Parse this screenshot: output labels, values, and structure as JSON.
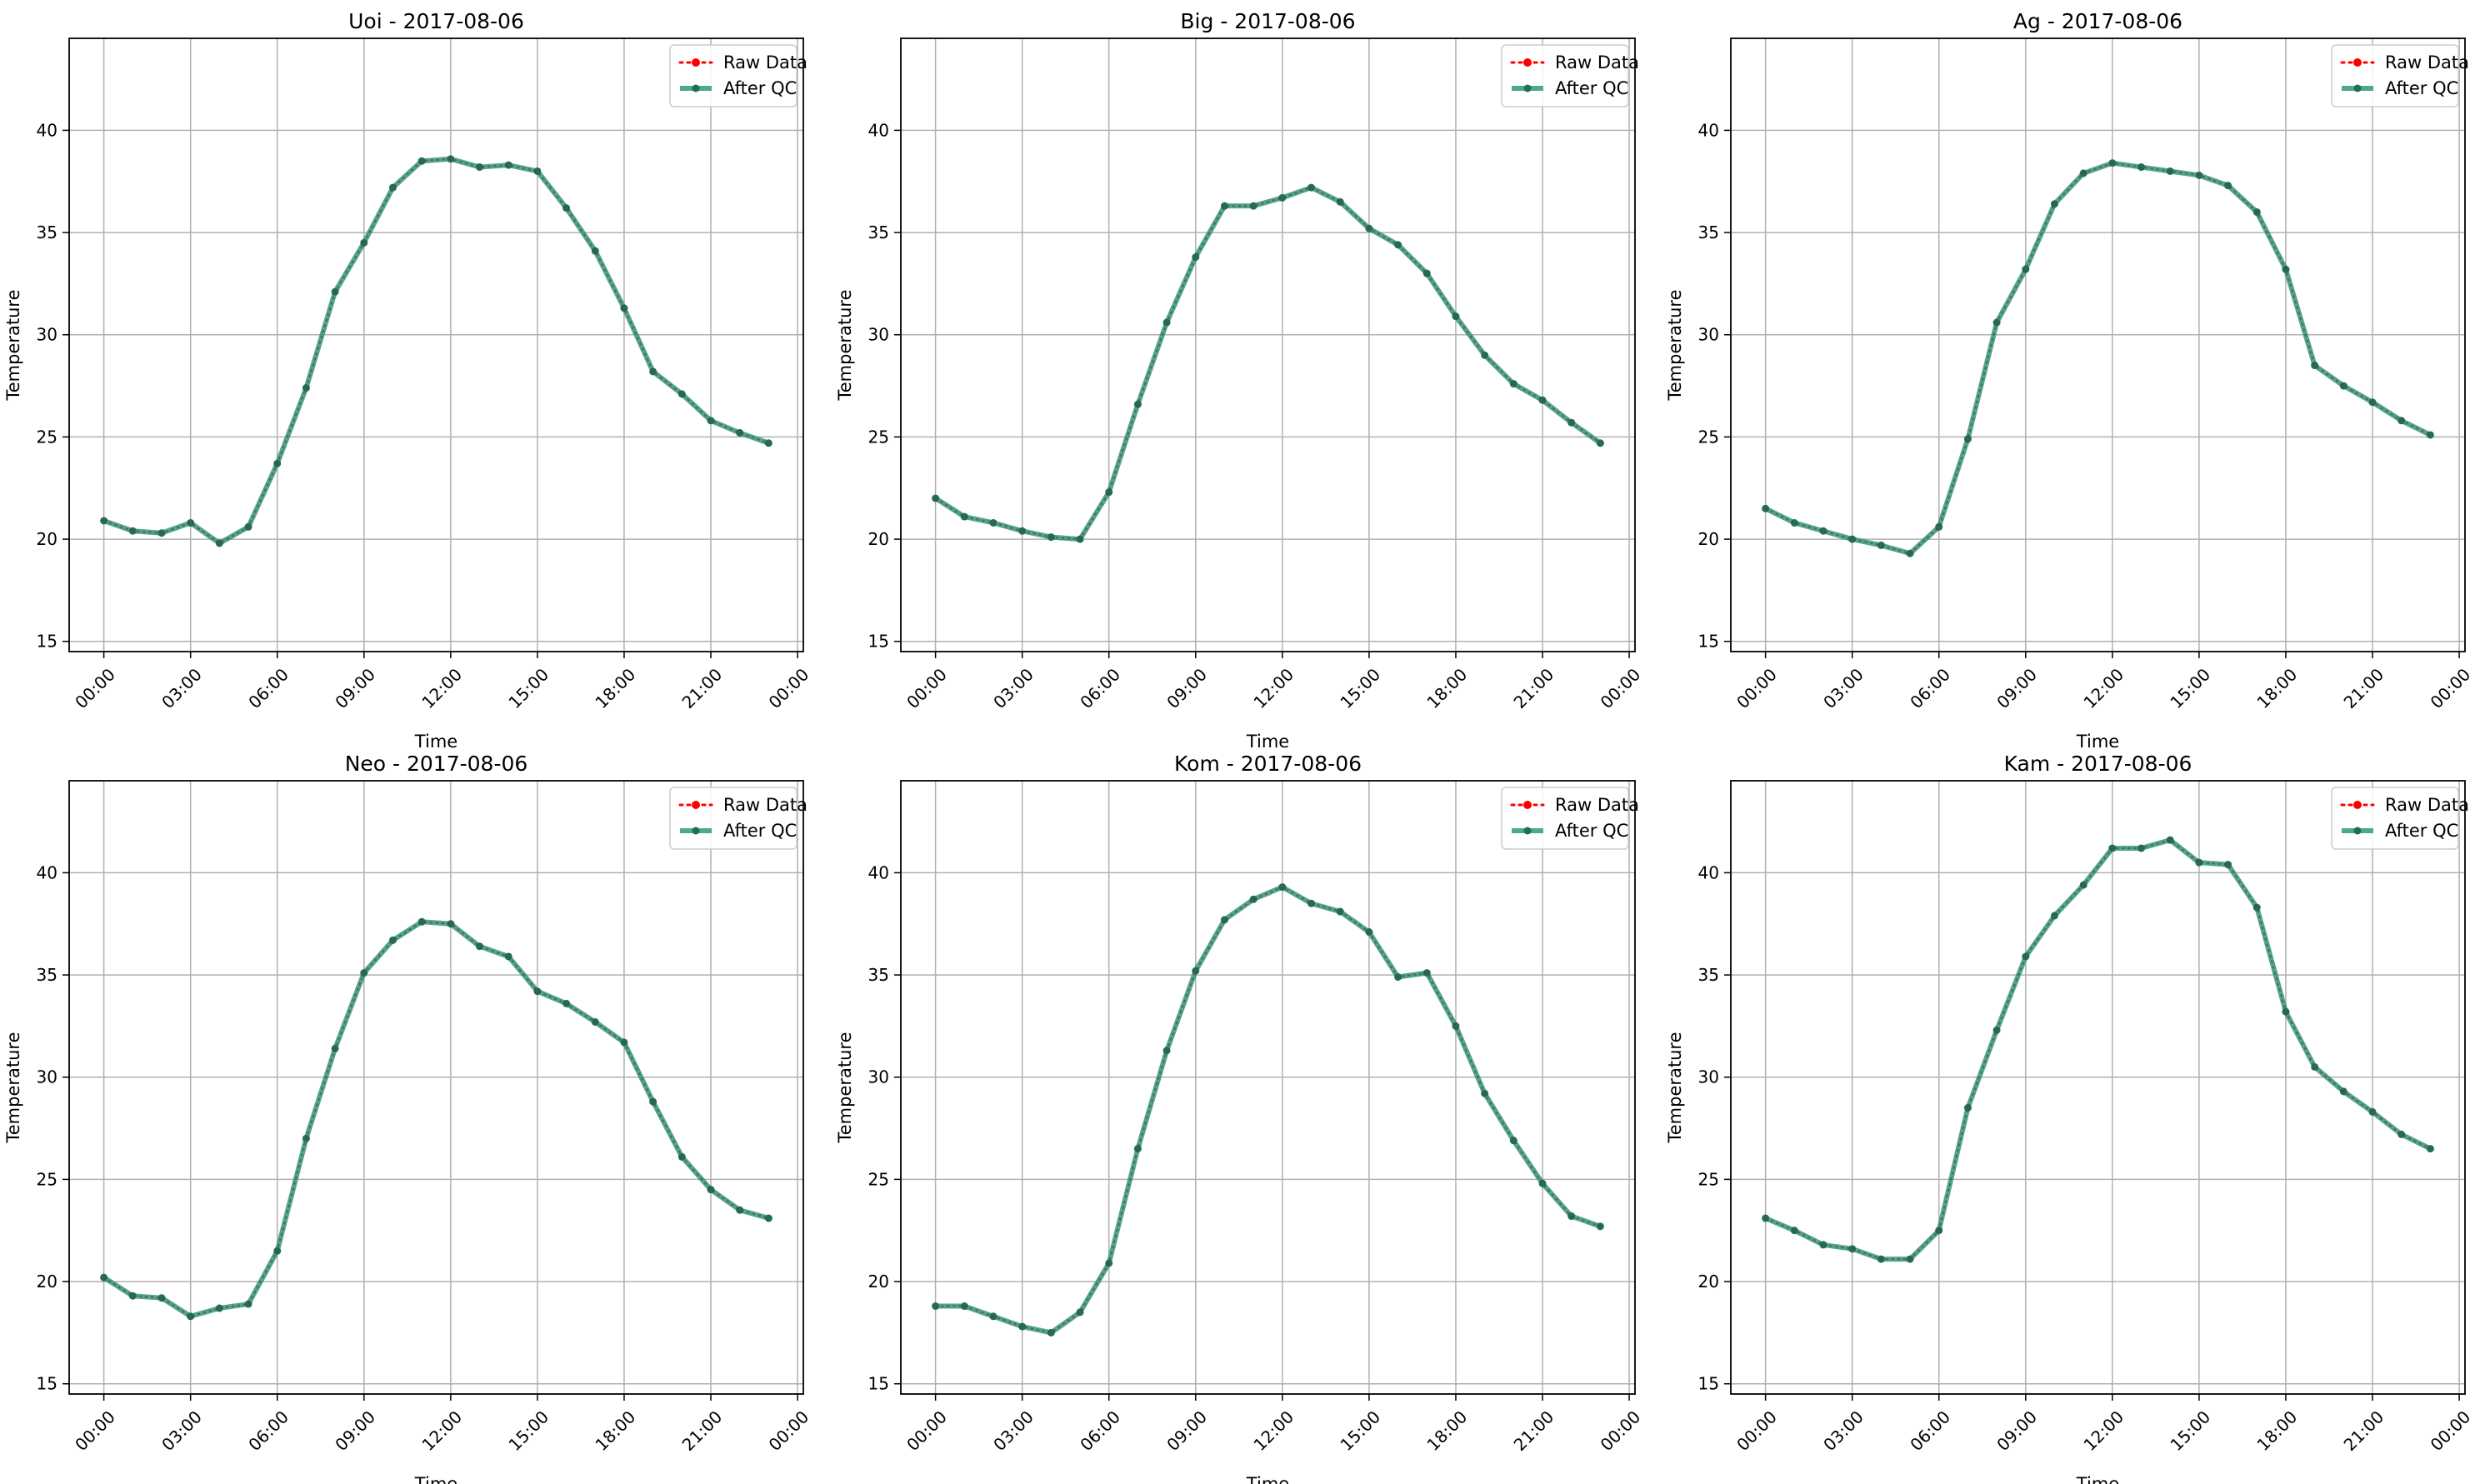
{
  "figure": {
    "background": "#ffffff"
  },
  "colors": {
    "raw": "#ff0000",
    "qc": "#2e9a78",
    "qc_marker": "#1f6e58",
    "grid": "#b0b0b0",
    "axis": "#000000"
  },
  "legend": {
    "raw_label": "Raw Data",
    "qc_label": "After QC",
    "placement": "top-right"
  },
  "chart_data": [
    {
      "type": "line",
      "title": "Uoi - 2017-08-06",
      "xlabel": "Time",
      "ylabel": "Temperature",
      "x_unit": "hour",
      "x": [
        0,
        1,
        2,
        3,
        4,
        5,
        6,
        7,
        8,
        9,
        10,
        11,
        12,
        13,
        14,
        15,
        16,
        17,
        18,
        19,
        20,
        21,
        22,
        23
      ],
      "xticks": [
        0,
        3,
        6,
        9,
        12,
        15,
        18,
        21,
        24
      ],
      "xtick_labels": [
        "00:00",
        "03:00",
        "06:00",
        "09:00",
        "12:00",
        "15:00",
        "18:00",
        "21:00",
        "00:00"
      ],
      "xlim": [
        -1.2,
        24.2
      ],
      "ylim": [
        14.5,
        44.5
      ],
      "yticks": [
        15,
        20,
        25,
        30,
        35,
        40
      ],
      "grid": true,
      "series": [
        {
          "name": "Raw Data",
          "values": [
            20.9,
            20.4,
            20.3,
            20.8,
            19.8,
            20.6,
            23.7,
            27.4,
            32.1,
            34.5,
            37.2,
            38.5,
            38.6,
            38.2,
            38.3,
            38.0,
            36.2,
            34.1,
            31.3,
            28.2,
            27.1,
            25.8,
            25.2,
            24.7
          ]
        },
        {
          "name": "After QC",
          "values": [
            20.9,
            20.4,
            20.3,
            20.8,
            19.8,
            20.6,
            23.7,
            27.4,
            32.1,
            34.5,
            37.2,
            38.5,
            38.6,
            38.2,
            38.3,
            38.0,
            36.2,
            34.1,
            31.3,
            28.2,
            27.1,
            25.8,
            25.2,
            24.7
          ]
        }
      ]
    },
    {
      "type": "line",
      "title": "Big - 2017-08-06",
      "xlabel": "Time",
      "ylabel": "Temperature",
      "x_unit": "hour",
      "x": [
        0,
        1,
        2,
        3,
        4,
        5,
        6,
        7,
        8,
        9,
        10,
        11,
        12,
        13,
        14,
        15,
        16,
        17,
        18,
        19,
        20,
        21,
        22,
        23
      ],
      "xticks": [
        0,
        3,
        6,
        9,
        12,
        15,
        18,
        21,
        24
      ],
      "xtick_labels": [
        "00:00",
        "03:00",
        "06:00",
        "09:00",
        "12:00",
        "15:00",
        "18:00",
        "21:00",
        "00:00"
      ],
      "xlim": [
        -1.2,
        24.2
      ],
      "ylim": [
        14.5,
        44.5
      ],
      "yticks": [
        15,
        20,
        25,
        30,
        35,
        40
      ],
      "grid": true,
      "series": [
        {
          "name": "Raw Data",
          "values": [
            22.0,
            21.1,
            20.8,
            20.4,
            20.1,
            20.0,
            22.3,
            26.6,
            30.6,
            33.8,
            36.3,
            36.3,
            36.7,
            37.2,
            36.5,
            35.2,
            34.4,
            33.0,
            30.9,
            29.0,
            27.6,
            26.8,
            25.7,
            24.7
          ]
        },
        {
          "name": "After QC",
          "values": [
            22.0,
            21.1,
            20.8,
            20.4,
            20.1,
            20.0,
            22.3,
            26.6,
            30.6,
            33.8,
            36.3,
            36.3,
            36.7,
            37.2,
            36.5,
            35.2,
            34.4,
            33.0,
            30.9,
            29.0,
            27.6,
            26.8,
            25.7,
            24.7
          ]
        }
      ]
    },
    {
      "type": "line",
      "title": "Ag - 2017-08-06",
      "xlabel": "Time",
      "ylabel": "Temperature",
      "x_unit": "hour",
      "x": [
        0,
        1,
        2,
        3,
        4,
        5,
        6,
        7,
        8,
        9,
        10,
        11,
        12,
        13,
        14,
        15,
        16,
        17,
        18,
        19,
        20,
        21,
        22,
        23
      ],
      "xticks": [
        0,
        3,
        6,
        9,
        12,
        15,
        18,
        21,
        24
      ],
      "xtick_labels": [
        "00:00",
        "03:00",
        "06:00",
        "09:00",
        "12:00",
        "15:00",
        "18:00",
        "21:00",
        "00:00"
      ],
      "xlim": [
        -1.2,
        24.2
      ],
      "ylim": [
        14.5,
        44.5
      ],
      "yticks": [
        15,
        20,
        25,
        30,
        35,
        40
      ],
      "grid": true,
      "series": [
        {
          "name": "Raw Data",
          "values": [
            21.5,
            20.8,
            20.4,
            20.0,
            19.7,
            19.3,
            20.6,
            24.9,
            30.6,
            33.2,
            36.4,
            37.9,
            38.4,
            38.2,
            38.0,
            37.8,
            37.3,
            36.0,
            33.2,
            28.5,
            27.5,
            26.7,
            25.8,
            25.1
          ]
        },
        {
          "name": "After QC",
          "values": [
            21.5,
            20.8,
            20.4,
            20.0,
            19.7,
            19.3,
            20.6,
            24.9,
            30.6,
            33.2,
            36.4,
            37.9,
            38.4,
            38.2,
            38.0,
            37.8,
            37.3,
            36.0,
            33.2,
            28.5,
            27.5,
            26.7,
            25.8,
            25.1
          ]
        }
      ]
    },
    {
      "type": "line",
      "title": "Neo - 2017-08-06",
      "xlabel": "Time",
      "ylabel": "Temperature",
      "x_unit": "hour",
      "x": [
        0,
        1,
        2,
        3,
        4,
        5,
        6,
        7,
        8,
        9,
        10,
        11,
        12,
        13,
        14,
        15,
        16,
        17,
        18,
        19,
        20,
        21,
        22,
        23
      ],
      "xticks": [
        0,
        3,
        6,
        9,
        12,
        15,
        18,
        21,
        24
      ],
      "xtick_labels": [
        "00:00",
        "03:00",
        "06:00",
        "09:00",
        "12:00",
        "15:00",
        "18:00",
        "21:00",
        "00:00"
      ],
      "xlim": [
        -1.2,
        24.2
      ],
      "ylim": [
        14.5,
        44.5
      ],
      "yticks": [
        15,
        20,
        25,
        30,
        35,
        40
      ],
      "grid": true,
      "series": [
        {
          "name": "Raw Data",
          "values": [
            20.2,
            19.3,
            19.2,
            18.3,
            18.7,
            18.9,
            21.5,
            27.0,
            31.4,
            35.1,
            36.7,
            37.6,
            37.5,
            36.4,
            35.9,
            34.2,
            33.6,
            32.7,
            31.7,
            28.8,
            26.1,
            24.5,
            23.5,
            23.1
          ]
        },
        {
          "name": "After QC",
          "values": [
            20.2,
            19.3,
            19.2,
            18.3,
            18.7,
            18.9,
            21.5,
            27.0,
            31.4,
            35.1,
            36.7,
            37.6,
            37.5,
            36.4,
            35.9,
            34.2,
            33.6,
            32.7,
            31.7,
            28.8,
            26.1,
            24.5,
            23.5,
            23.1
          ]
        }
      ]
    },
    {
      "type": "line",
      "title": "Kom - 2017-08-06",
      "xlabel": "Time",
      "ylabel": "Temperature",
      "x_unit": "hour",
      "x": [
        0,
        1,
        2,
        3,
        4,
        5,
        6,
        7,
        8,
        9,
        10,
        11,
        12,
        13,
        14,
        15,
        16,
        17,
        18,
        19,
        20,
        21,
        22,
        23
      ],
      "xticks": [
        0,
        3,
        6,
        9,
        12,
        15,
        18,
        21,
        24
      ],
      "xtick_labels": [
        "00:00",
        "03:00",
        "06:00",
        "09:00",
        "12:00",
        "15:00",
        "18:00",
        "21:00",
        "00:00"
      ],
      "xlim": [
        -1.2,
        24.2
      ],
      "ylim": [
        14.5,
        44.5
      ],
      "yticks": [
        15,
        20,
        25,
        30,
        35,
        40
      ],
      "grid": true,
      "series": [
        {
          "name": "Raw Data",
          "values": [
            18.8,
            18.8,
            18.3,
            17.8,
            17.5,
            18.5,
            20.9,
            26.5,
            31.3,
            35.2,
            37.7,
            38.7,
            39.3,
            38.5,
            38.1,
            37.1,
            34.9,
            35.1,
            32.5,
            29.2,
            26.9,
            24.8,
            23.2,
            22.7
          ]
        },
        {
          "name": "After QC",
          "values": [
            18.8,
            18.8,
            18.3,
            17.8,
            17.5,
            18.5,
            20.9,
            26.5,
            31.3,
            35.2,
            37.7,
            38.7,
            39.3,
            38.5,
            38.1,
            37.1,
            34.9,
            35.1,
            32.5,
            29.2,
            26.9,
            24.8,
            23.2,
            22.7
          ]
        }
      ]
    },
    {
      "type": "line",
      "title": "Kam - 2017-08-06",
      "xlabel": "Time",
      "ylabel": "Temperature",
      "x_unit": "hour",
      "x": [
        0,
        1,
        2,
        3,
        4,
        5,
        6,
        7,
        8,
        9,
        10,
        11,
        12,
        13,
        14,
        15,
        16,
        17,
        18,
        19,
        20,
        21,
        22,
        23
      ],
      "xticks": [
        0,
        3,
        6,
        9,
        12,
        15,
        18,
        21,
        24
      ],
      "xtick_labels": [
        "00:00",
        "03:00",
        "06:00",
        "09:00",
        "12:00",
        "15:00",
        "18:00",
        "21:00",
        "00:00"
      ],
      "xlim": [
        -1.2,
        24.2
      ],
      "ylim": [
        14.5,
        44.5
      ],
      "yticks": [
        15,
        20,
        25,
        30,
        35,
        40
      ],
      "grid": true,
      "series": [
        {
          "name": "Raw Data",
          "values": [
            23.1,
            22.5,
            21.8,
            21.6,
            21.1,
            21.1,
            22.5,
            28.5,
            32.3,
            35.9,
            37.9,
            39.4,
            41.2,
            41.2,
            41.6,
            40.5,
            40.4,
            38.3,
            33.2,
            30.5,
            29.3,
            28.3,
            27.2,
            26.5
          ]
        },
        {
          "name": "After QC",
          "values": [
            23.1,
            22.5,
            21.8,
            21.6,
            21.1,
            21.1,
            22.5,
            28.5,
            32.3,
            35.9,
            37.9,
            39.4,
            41.2,
            41.2,
            41.6,
            40.5,
            40.4,
            38.3,
            33.2,
            30.5,
            29.3,
            28.3,
            27.2,
            26.5
          ]
        }
      ]
    }
  ]
}
